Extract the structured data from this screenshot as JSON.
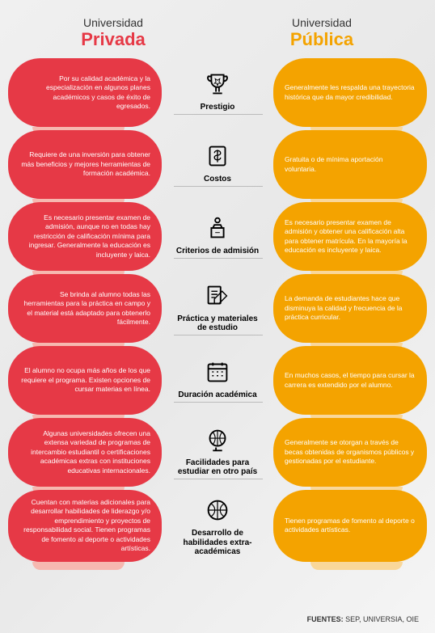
{
  "header": {
    "label": "Universidad",
    "privada": "Privada",
    "publica": "Pública"
  },
  "colors": {
    "privada": "#e63946",
    "publica": "#f4a300",
    "privada_shadow": "#f6b8b0",
    "publica_shadow": "#f9d79a"
  },
  "rows": [
    {
      "left": "Por su calidad académica y la especialización en algunos planes académicos y casos de éxito de egresados.",
      "center": "Prestigio",
      "right": "Generalmente les respalda una trayectoria histórica que da mayor credibilidad."
    },
    {
      "left": "Requiere de una inversión para obtener más beneficios y mejores herramientas de formación académica.",
      "center": "Costos",
      "right": "Gratuita o de mínima aportación voluntaria."
    },
    {
      "left": "Es necesario presentar examen de admisión, aunque no en todas hay restricción de calificación mínima para ingresar. Generalmente la educación es incluyente y laica.",
      "center": "Criterios de admisión",
      "right": "Es necesario presentar examen de admisión y obtener una calificación alta para obtener matrícula. En la mayoría la educación es incluyente y laica."
    },
    {
      "left": "Se brinda al alumno todas las herramientas para la práctica en campo y el material está adaptado para obtenerlo fácilmente.",
      "center": "Práctica y materiales de estudio",
      "right": "La demanda de estudiantes hace que disminuya la calidad y frecuencia de la práctica curricular."
    },
    {
      "left": "El alumno no ocupa más años de los que requiere el programa. Existen opciones de cursar materias en línea.",
      "center": "Duración académica",
      "right": "En muchos casos, el tiempo para cursar la carrera es extendido por el alumno."
    },
    {
      "left": "Algunas universidades ofrecen una extensa variedad de programas de intercambio estudiantil o certificaciones académicas extras con instituciones educativas internacionales.",
      "center": "Facilidades para estudiar en otro país",
      "right": "Generalmente se otorgan a través de becas obtenidas de organismos públicos y gestionadas por el estudiante."
    },
    {
      "left": "Cuentan con materias adicionales para desarrollar habilidades de liderazgo y/o emprendimiento y proyectos de responsabilidad social. Tienen programas de fomento al deporte o actividades artísticas.",
      "center": "Desarrollo de habilidades extra-académicas",
      "right": "Tienen programas de fomento al deporte o actividades artísticas."
    }
  ],
  "footer": {
    "label": "FUENTES:",
    "value": "SEP, UNIVERSIA, OIE"
  }
}
